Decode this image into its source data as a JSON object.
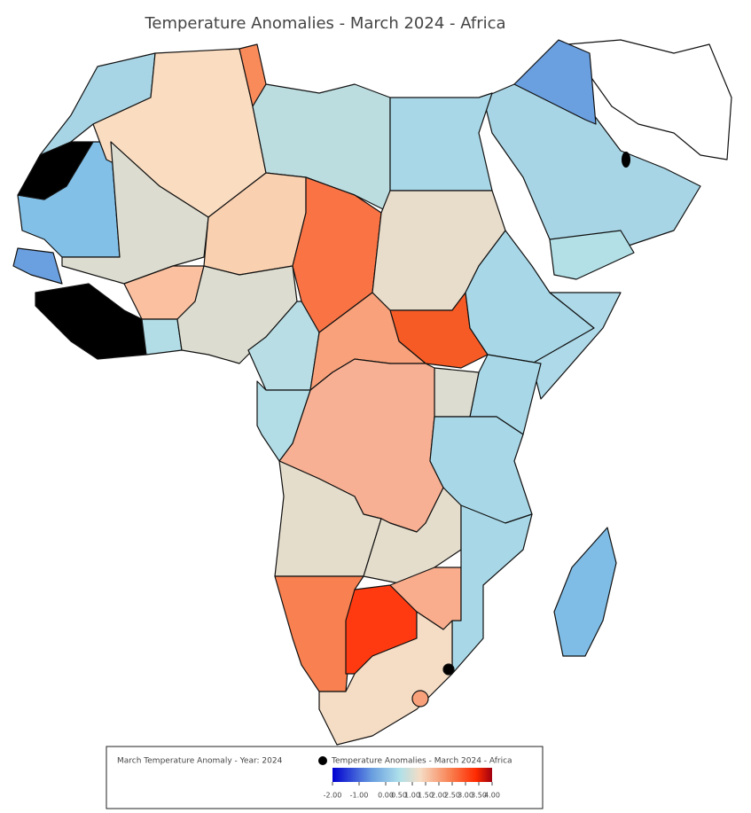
{
  "title": "Temperature Anomalies - March 2024 - Africa",
  "legend": {
    "heading": "March Temperature Anomaly - Year: 2024",
    "entry": "Temperature Anomalies - March 2024 - Africa",
    "colorbar": {
      "range": [
        -2,
        4
      ],
      "ticks": [
        {
          "value": -2,
          "label": "-2.00"
        },
        {
          "value": -1,
          "label": "-1.00"
        },
        {
          "value": 0,
          "label": "0.00"
        },
        {
          "value": 0.5,
          "label": "0.50"
        },
        {
          "value": 1,
          "label": "1.00"
        },
        {
          "value": 1.5,
          "label": "1.50"
        },
        {
          "value": 2,
          "label": "2.00"
        },
        {
          "value": 2.5,
          "label": "2.50"
        },
        {
          "value": 3,
          "label": "3.00"
        },
        {
          "value": 3.5,
          "label": "3.50"
        },
        {
          "value": 4,
          "label": "4.00"
        }
      ]
    }
  }
}
